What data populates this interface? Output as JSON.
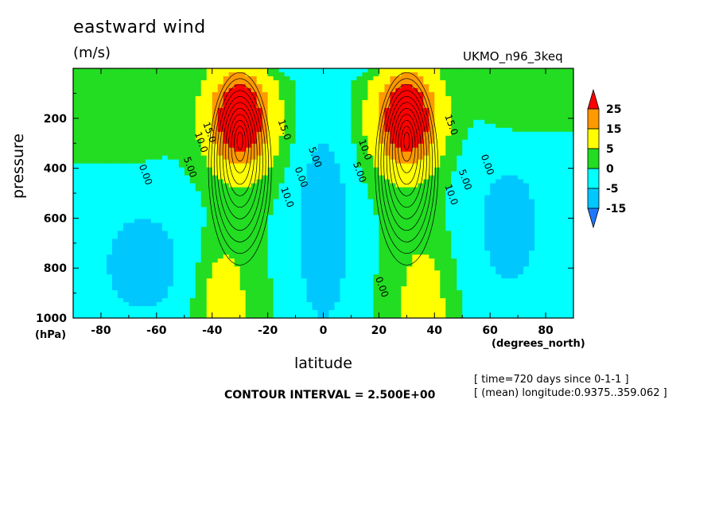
{
  "header": {
    "title": "eastward wind",
    "units": "(m/s)",
    "model": "UKMO_n96_3keq"
  },
  "footer": {
    "contour_interval": "CONTOUR INTERVAL = 2.500E+00",
    "time": "[ time=720 days since 0-1-1 ]",
    "longitude": "[ (mean) longitude:0.9375..359.062 ]"
  },
  "chart_data": {
    "type": "heatmap",
    "title": "eastward wind",
    "xlabel": "latitude",
    "ylabel": "pressure",
    "x_units": "(degrees_north)",
    "y_units": "(hPa)",
    "xlim": [
      -90,
      90
    ],
    "ylim": [
      1000,
      0
    ],
    "x_ticks": [
      -80,
      -60,
      -40,
      -20,
      0,
      20,
      40,
      60,
      80
    ],
    "y_ticks": [
      200,
      400,
      600,
      800,
      1000
    ],
    "contour_interval": 2.5,
    "colorbar": {
      "levels": [
        -15,
        -5,
        0,
        5,
        15,
        25
      ],
      "labels": [
        "25",
        "15",
        "5",
        "0",
        "-5",
        "-15"
      ],
      "colors": [
        "#1e78ff",
        "#00c8ff",
        "#00ffff",
        "#22dd22",
        "#ffff00",
        "#ff9900",
        "#ff0000"
      ]
    },
    "contour_labels": [
      {
        "text": "0.00",
        "lat": -65,
        "p": 430
      },
      {
        "text": "5.00",
        "lat": -49,
        "p": 400
      },
      {
        "text": "10.0",
        "lat": -45,
        "p": 300
      },
      {
        "text": "15.0",
        "lat": -42,
        "p": 260
      },
      {
        "text": "15.0",
        "lat": -15,
        "p": 250
      },
      {
        "text": "10.0",
        "lat": -14,
        "p": 520
      },
      {
        "text": "0.00",
        "lat": -9,
        "p": 440
      },
      {
        "text": "5.00",
        "lat": -4,
        "p": 360
      },
      {
        "text": "5.00",
        "lat": 12,
        "p": 420
      },
      {
        "text": "10.0",
        "lat": 14,
        "p": 330
      },
      {
        "text": "15.0",
        "lat": 45,
        "p": 230
      },
      {
        "text": "10.0",
        "lat": 45,
        "p": 510
      },
      {
        "text": "5.00",
        "lat": 50,
        "p": 450
      },
      {
        "text": "0.00",
        "lat": 58,
        "p": 390
      },
      {
        "text": "0.00",
        "lat": 20,
        "p": 880
      }
    ],
    "jets": [
      {
        "lat": -30,
        "p": 200,
        "max_ms": 40
      },
      {
        "lat": 30,
        "p": 200,
        "max_ms": 40
      }
    ]
  }
}
